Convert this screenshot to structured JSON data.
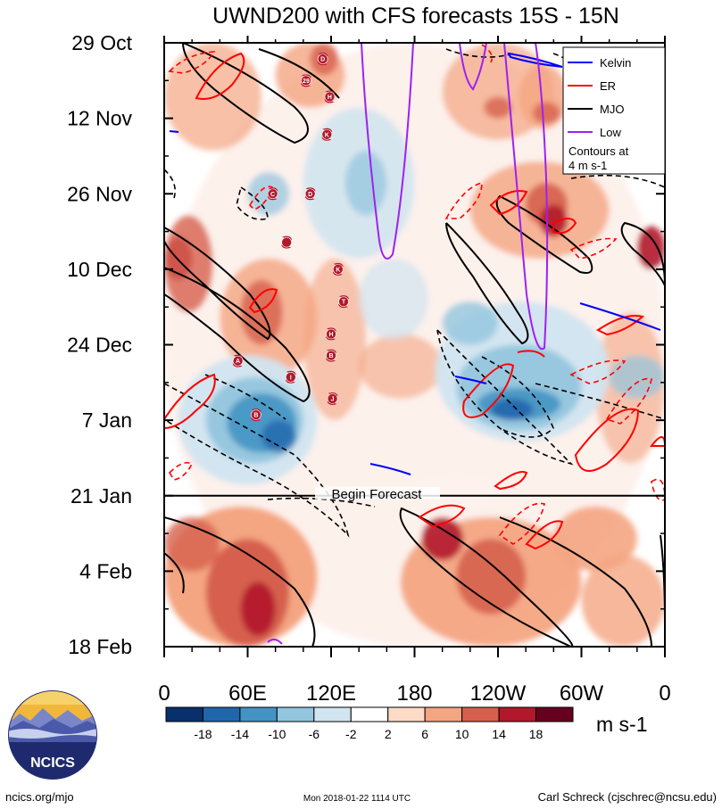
{
  "chart_data": {
    "type": "heatmap",
    "title": "UWND200 with CFS forecasts  15S - 15N",
    "xlabel": "",
    "ylabel": "",
    "x_ticks": [
      "0",
      "60E",
      "120E",
      "180",
      "120W",
      "60W",
      "0"
    ],
    "x_range": [
      0,
      360
    ],
    "y_ticks": [
      "29 Oct",
      "12 Nov",
      "26 Nov",
      "10 Dec",
      "24 Dec",
      "7 Jan",
      "21 Jan",
      "4 Feb",
      "18 Feb"
    ],
    "y_range_days": [
      0,
      112
    ],
    "forecast_start_label": "Begin Forecast",
    "forecast_start_day": 84,
    "colorbar": {
      "levels": [
        "-18",
        "-14",
        "-10",
        "-6",
        "-2",
        "2",
        "6",
        "10",
        "14",
        "18"
      ],
      "colors": [
        "#08306b",
        "#2166ac",
        "#4393c3",
        "#92c5de",
        "#d1e5f0",
        "#ffffff",
        "#fddbc7",
        "#f4a582",
        "#d6604d",
        "#b2182b",
        "#67001f"
      ],
      "units": "m s-1"
    },
    "legend": {
      "entries": [
        {
          "label": "Kelvin",
          "color": "#0000ff"
        },
        {
          "label": "ER",
          "color": "#ff0000"
        },
        {
          "label": "MJO",
          "color": "#000000"
        },
        {
          "label": "Low",
          "color": "#a020f0"
        }
      ],
      "note_line1": "Contours at",
      "note_line2": "4 m s-1",
      "position": "top-right"
    },
    "tropical_cyclones": [
      {
        "label": "D",
        "lon": 114,
        "day": 3
      },
      {
        "label": "29",
        "lon": 102,
        "day": 7
      },
      {
        "label": "H",
        "lon": 119,
        "day": 10
      },
      {
        "label": "K",
        "lon": 117,
        "day": 17
      },
      {
        "label": "C",
        "lon": 78,
        "day": 28
      },
      {
        "label": "D",
        "lon": 105,
        "day": 28
      },
      {
        "label": "",
        "lon": 88,
        "day": 37
      },
      {
        "label": "K",
        "lon": 125,
        "day": 42
      },
      {
        "label": "T",
        "lon": 129,
        "day": 48
      },
      {
        "label": "H",
        "lon": 120,
        "day": 54
      },
      {
        "label": "B",
        "lon": 120,
        "day": 58
      },
      {
        "label": "A",
        "lon": 53,
        "day": 59
      },
      {
        "label": "I",
        "lon": 91,
        "day": 62
      },
      {
        "label": "J",
        "lon": 121,
        "day": 66
      },
      {
        "label": "B",
        "lon": 66,
        "day": 69
      }
    ]
  },
  "footer": {
    "left": "ncics.org/mjo",
    "center": "Mon 2018-01-22 1114 UTC",
    "right": "Carl Schreck (cjschrec@ncsu.edu)"
  },
  "logo": {
    "text": "NCICS"
  }
}
